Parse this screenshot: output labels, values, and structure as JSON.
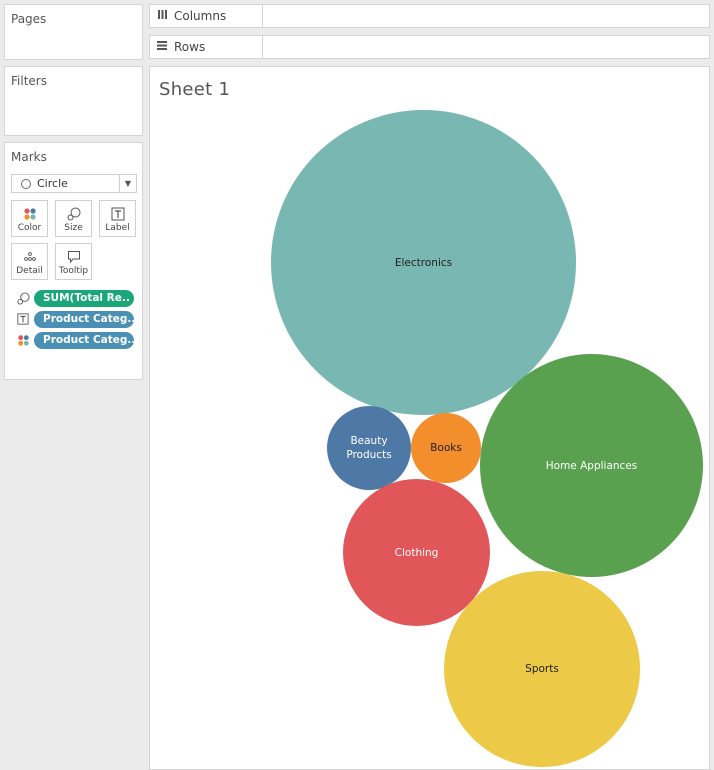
{
  "panels": {
    "pages": "Pages",
    "filters": "Filters",
    "marks": "Marks"
  },
  "shelves": {
    "columns": "Columns",
    "rows": "Rows"
  },
  "marks": {
    "mark_type": "Circle",
    "buttons": {
      "color": "Color",
      "size": "Size",
      "label": "Label",
      "detail": "Detail",
      "tooltip": "Tooltip"
    },
    "pills": [
      {
        "text": "SUM(Total Re..",
        "color": "#1aa679",
        "icon": "size-icon"
      },
      {
        "text": "Product Categ..",
        "color": "#4a8fb4",
        "icon": "label-icon"
      },
      {
        "text": "Product Categ..",
        "color": "#4a8fb4",
        "icon": "color-icon"
      }
    ]
  },
  "sheet": {
    "title": "Sheet 1"
  },
  "bubbles": [
    {
      "category": "Electronics",
      "color": "#78b7b2",
      "text_color": "#222222"
    },
    {
      "category": "Home Appliances",
      "color": "#59a14f",
      "text_color": "#ffffff"
    },
    {
      "category": "Beauty Products",
      "color": "#4e79a7",
      "text_color": "#ffffff"
    },
    {
      "category": "Books",
      "color": "#f28e2b",
      "text_color": "#222222"
    },
    {
      "category": "Clothing",
      "color": "#e15759",
      "text_color": "#ffffff"
    },
    {
      "category": "Sports",
      "color": "#edc948",
      "text_color": "#222222"
    }
  ]
}
